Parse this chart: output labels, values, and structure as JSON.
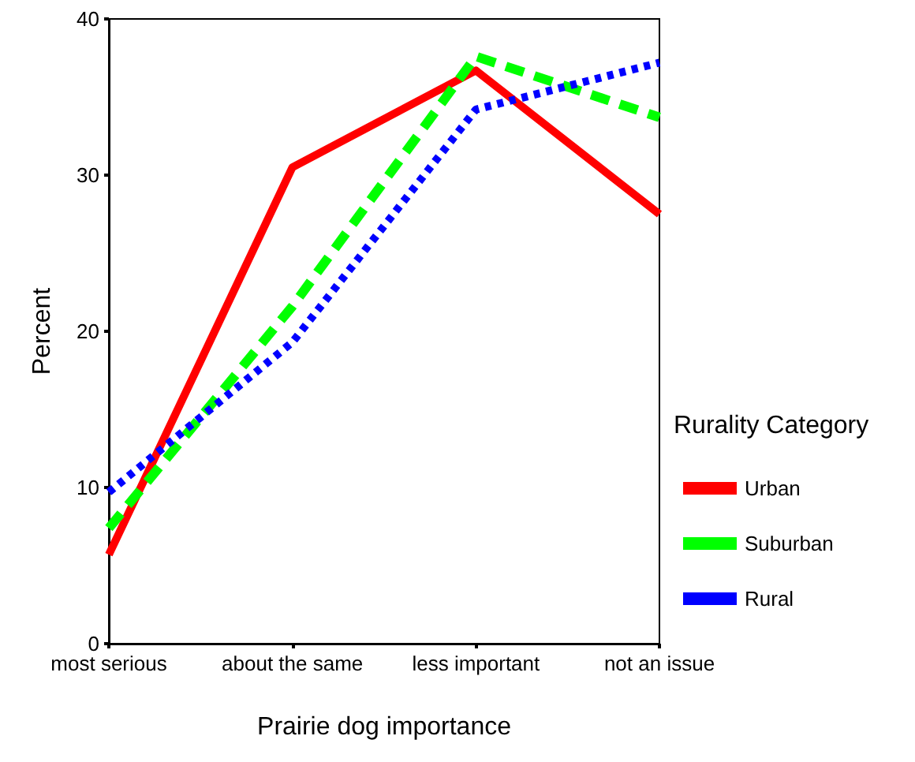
{
  "chart_data": {
    "type": "line",
    "xlabel": "Prairie dog importance",
    "ylabel": "Percent",
    "legend_title": "Rurality Category",
    "categories": [
      "most serious",
      "about the same",
      "less important",
      "not an issue"
    ],
    "series": [
      {
        "name": "Urban",
        "color": "#ff0000",
        "line_style": "solid",
        "values": [
          5.7,
          30.5,
          36.7,
          27.5
        ]
      },
      {
        "name": "Suburban",
        "color": "#00ff00",
        "line_style": "dashed",
        "values": [
          7.4,
          21.6,
          37.6,
          33.7
        ]
      },
      {
        "name": "Rural",
        "color": "#0000ff",
        "line_style": "dotted",
        "values": [
          9.7,
          19.3,
          34.2,
          37.2
        ]
      }
    ],
    "ylim": [
      0,
      40
    ],
    "yticks": [
      0,
      10,
      20,
      30,
      40
    ],
    "grid": false,
    "legend": "right",
    "marker": "none"
  }
}
